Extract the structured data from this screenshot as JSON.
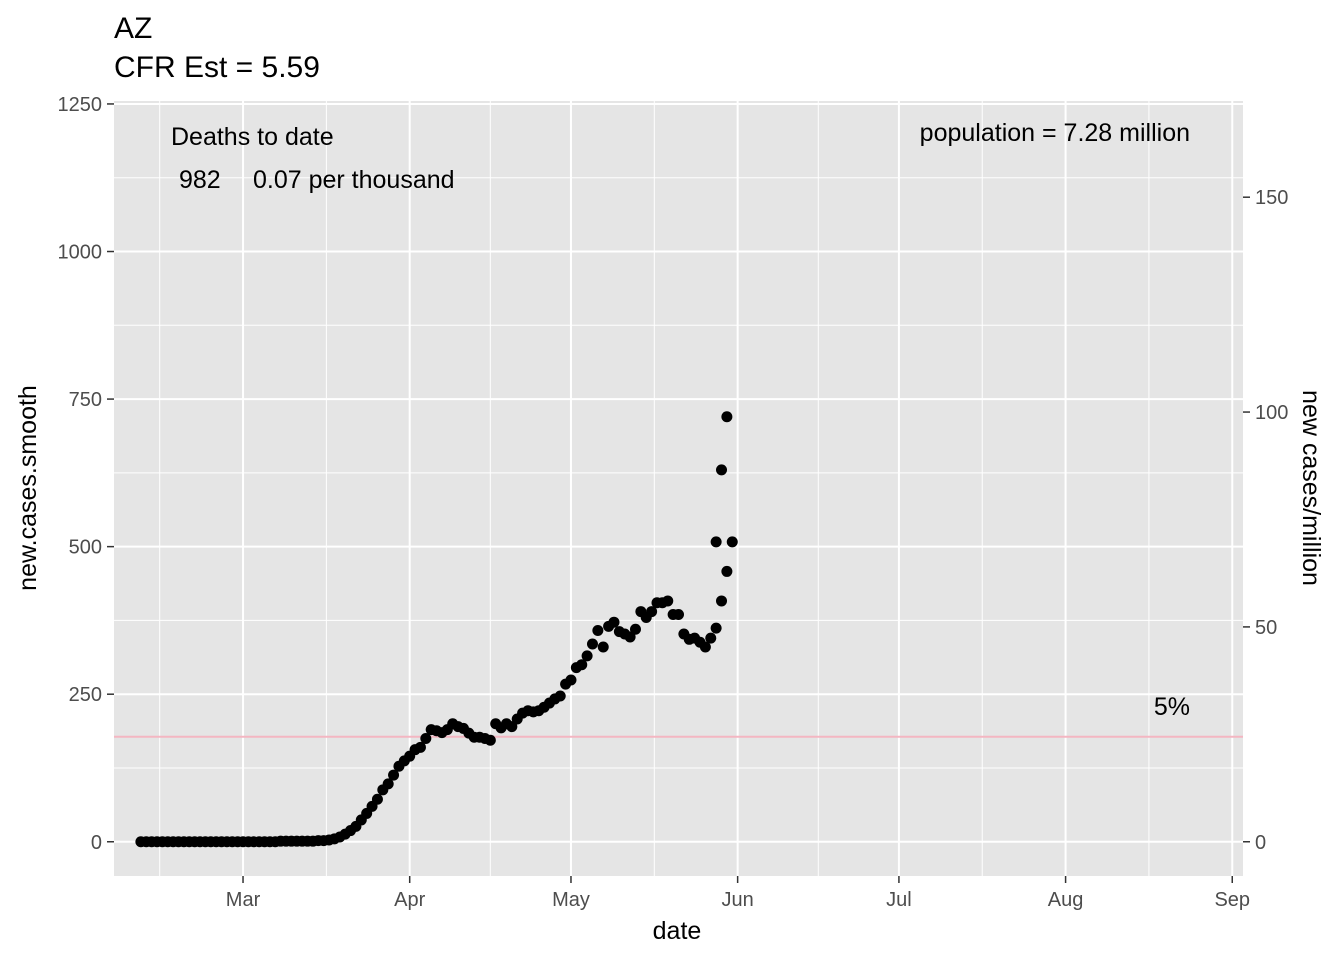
{
  "title": "AZ",
  "subtitle": "CFR Est = 5.59",
  "annotations": {
    "deaths_heading": "Deaths to date",
    "deaths_count": "982",
    "deaths_rate": "0.07 per thousand",
    "population": "population = 7.28 million",
    "cfr_line_label": "5%"
  },
  "colors": {
    "panel": "#e5e5e5",
    "grid": "#ffffff",
    "points": "#000000",
    "reference_line": "#f4b6c2"
  },
  "chart_data": {
    "type": "scatter",
    "xlabel": "date",
    "ylabel": "new.cases.smooth",
    "y2label": "new cases/million",
    "x_ticks": [
      "Mar",
      "Apr",
      "May",
      "Jun",
      "Jul",
      "Aug",
      "Sep"
    ],
    "x_tick_dates": [
      "2020-03-01",
      "2020-04-01",
      "2020-05-01",
      "2020-06-01",
      "2020-07-01",
      "2020-08-01",
      "2020-09-01"
    ],
    "xlim": [
      "2020-02-06",
      "2020-09-03"
    ],
    "y_ticks": [
      "0",
      "250",
      "500",
      "750",
      "1000",
      "1250"
    ],
    "ylim": [
      -58,
      1255
    ],
    "y2_ticks": [
      "0",
      "50",
      "100",
      "150"
    ],
    "y2_per_y": 0.13736,
    "reference_line_y": 178,
    "grid": true,
    "legend": "none",
    "series": [
      {
        "x": [
          "2020-02-11",
          "2020-02-12",
          "2020-02-13",
          "2020-02-14",
          "2020-02-15",
          "2020-02-16",
          "2020-02-17",
          "2020-02-18",
          "2020-02-19",
          "2020-02-20",
          "2020-02-21",
          "2020-02-22",
          "2020-02-23",
          "2020-02-24",
          "2020-02-25",
          "2020-02-26",
          "2020-02-27",
          "2020-02-28",
          "2020-02-29",
          "2020-03-01",
          "2020-03-02",
          "2020-03-03",
          "2020-03-04",
          "2020-03-05",
          "2020-03-06",
          "2020-03-07",
          "2020-03-08",
          "2020-03-09",
          "2020-03-10",
          "2020-03-11",
          "2020-03-12",
          "2020-03-13",
          "2020-03-14",
          "2020-03-15",
          "2020-03-16",
          "2020-03-17",
          "2020-03-18",
          "2020-03-19",
          "2020-03-20",
          "2020-03-21",
          "2020-03-22",
          "2020-03-23",
          "2020-03-24",
          "2020-03-25",
          "2020-03-26",
          "2020-03-27",
          "2020-03-28",
          "2020-03-29",
          "2020-03-30",
          "2020-03-31",
          "2020-04-01",
          "2020-04-02",
          "2020-04-03",
          "2020-04-04",
          "2020-04-05",
          "2020-04-06",
          "2020-04-07",
          "2020-04-08",
          "2020-04-09",
          "2020-04-10",
          "2020-04-11",
          "2020-04-12",
          "2020-04-13",
          "2020-04-14",
          "2020-04-15",
          "2020-04-16",
          "2020-04-17",
          "2020-04-18",
          "2020-04-19",
          "2020-04-20",
          "2020-04-21",
          "2020-04-22",
          "2020-04-23",
          "2020-04-24",
          "2020-04-25",
          "2020-04-26",
          "2020-04-27",
          "2020-04-28",
          "2020-04-29",
          "2020-04-30",
          "2020-05-01",
          "2020-05-02",
          "2020-05-03",
          "2020-05-04",
          "2020-05-05",
          "2020-05-06",
          "2020-05-07",
          "2020-05-08",
          "2020-05-09",
          "2020-05-10",
          "2020-05-11",
          "2020-05-12",
          "2020-05-13",
          "2020-05-14",
          "2020-05-15",
          "2020-05-16",
          "2020-05-17",
          "2020-05-18",
          "2020-05-19",
          "2020-05-20",
          "2020-05-21",
          "2020-05-22",
          "2020-05-23",
          "2020-05-24",
          "2020-05-25",
          "2020-05-26",
          "2020-05-27",
          "2020-05-28",
          "2020-05-29",
          "2020-05-30",
          "2020-05-31"
        ],
        "y": [
          0,
          0,
          0,
          0,
          0,
          0,
          0,
          0,
          0,
          0,
          0,
          0,
          0,
          0,
          0,
          0,
          0,
          0,
          0,
          0,
          0,
          0,
          0,
          0,
          0,
          0,
          1,
          1,
          1,
          1,
          1,
          1,
          1,
          2,
          2,
          3,
          5,
          8,
          13,
          19,
          26,
          37,
          48,
          60,
          72,
          88,
          98,
          113,
          128,
          137,
          145,
          156,
          160,
          175,
          190,
          188,
          185,
          190,
          200,
          195,
          192,
          184,
          177,
          177,
          175,
          172,
          200,
          193,
          200,
          195,
          208,
          218,
          222,
          220,
          222,
          228,
          235,
          242,
          247,
          267,
          274,
          295,
          300,
          315,
          335,
          358,
          330,
          365,
          372,
          356,
          352,
          347,
          360,
          390,
          380,
          390,
          405,
          405,
          408,
          385,
          385,
          352,
          343,
          345,
          338,
          330,
          345,
          362,
          408,
          458,
          508
        ]
      },
      {
        "x": [
          "2020-05-28",
          "2020-05-29",
          "2020-05-30"
        ],
        "y": [
          508,
          630,
          720
        ]
      }
    ]
  }
}
